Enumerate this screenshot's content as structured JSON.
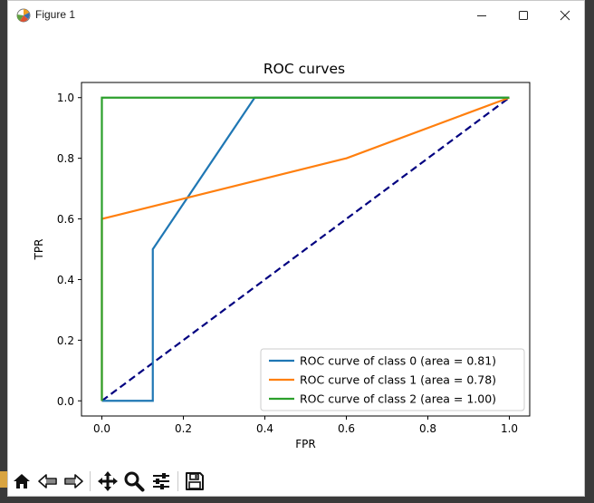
{
  "window": {
    "title": "Figure 1",
    "minimize_icon": "minimize-icon",
    "maximize_icon": "maximize-icon",
    "close_icon": "close-icon"
  },
  "toolbar": {
    "buttons": [
      {
        "name": "home-button",
        "icon": "home-icon"
      },
      {
        "name": "back-button",
        "icon": "back-arrow-icon"
      },
      {
        "name": "forward-button",
        "icon": "forward-arrow-icon"
      },
      {
        "name": "pan-button",
        "icon": "move-icon"
      },
      {
        "name": "zoom-button",
        "icon": "zoom-icon"
      },
      {
        "name": "configure-subplots-button",
        "icon": "sliders-icon"
      },
      {
        "name": "save-button",
        "icon": "save-icon"
      }
    ]
  },
  "chart_data": {
    "type": "line",
    "title": "ROC curves",
    "xlabel": "FPR",
    "ylabel": "TPR",
    "xlim": [
      -0.05,
      1.05
    ],
    "ylim": [
      -0.05,
      1.05
    ],
    "xticks": [
      0.0,
      0.2,
      0.4,
      0.6,
      0.8,
      1.0
    ],
    "yticks": [
      0.0,
      0.2,
      0.4,
      0.6,
      0.8,
      1.0
    ],
    "xtick_labels": [
      "0.0",
      "0.2",
      "0.4",
      "0.6",
      "0.8",
      "1.0"
    ],
    "ytick_labels": [
      "0.0",
      "0.2",
      "0.4",
      "0.6",
      "0.8",
      "1.0"
    ],
    "grid": false,
    "legend_position": "lower-right",
    "series": [
      {
        "name": "ROC curve of class 0 (area = 0.81)",
        "color": "#1f77b4",
        "x": [
          0.0,
          0.125,
          0.125,
          0.375,
          1.0
        ],
        "y": [
          0.0,
          0.0,
          0.5,
          1.0,
          1.0
        ]
      },
      {
        "name": "ROC curve of class 1 (area = 0.78)",
        "color": "#ff7f0e",
        "x": [
          0.0,
          0.0,
          0.6,
          1.0
        ],
        "y": [
          0.0,
          0.6,
          0.8,
          1.0
        ]
      },
      {
        "name": "ROC curve of class 2 (area = 1.00)",
        "color": "#2ca02c",
        "x": [
          0.0,
          0.0,
          1.0
        ],
        "y": [
          0.0,
          1.0,
          1.0
        ]
      }
    ],
    "reference_line": {
      "color": "#000080",
      "style": "dashed",
      "x": [
        0.0,
        1.0
      ],
      "y": [
        0.0,
        1.0
      ]
    }
  }
}
